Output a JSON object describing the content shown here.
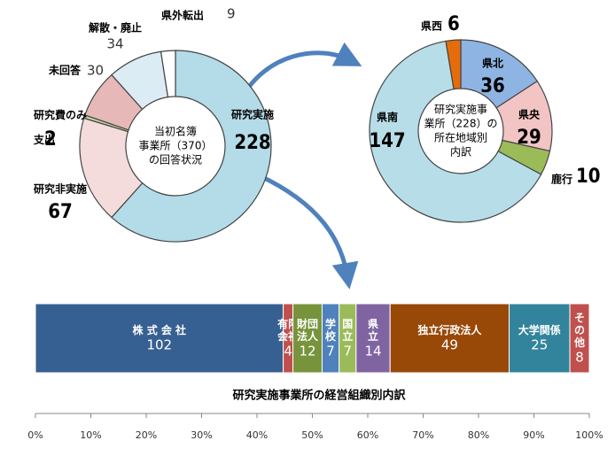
{
  "chart_data": [
    {
      "type": "donut",
      "center_label": [
        "当初名簿",
        "事業所（370）",
        "の回答状況"
      ],
      "categories": [
        "研究実施",
        "研究非実施",
        "研究費のみ支出",
        "未回答",
        "解散・廃止",
        "県外転出"
      ],
      "values": [
        228,
        67,
        2,
        30,
        34,
        9
      ],
      "colors": [
        "#b3dbe8",
        "#f4dcdc",
        "#c6d9a0",
        "#e6b8b7",
        "#dcecf4",
        "#ffffff"
      ]
    },
    {
      "type": "donut",
      "center_label": [
        "研究実施事",
        "業所（228）の",
        "所在地域別",
        "内訳"
      ],
      "categories": [
        "県北",
        "県央",
        "鹿行",
        "県南",
        "県西"
      ],
      "values": [
        36,
        29,
        10,
        147,
        6
      ],
      "colors": [
        "#8eb4e3",
        "#f2c4c4",
        "#9bbb59",
        "#b7dde8",
        "#e46c0a"
      ]
    },
    {
      "type": "stacked_bar",
      "title": "研究実施事業所の経営組織別内訳",
      "categories": [
        "株 式 会 社",
        "有限会社",
        "財団法人",
        "学校",
        "国立",
        "県立",
        "独立行政法人",
        "大学関係",
        "その他"
      ],
      "values": [
        102,
        4,
        12,
        7,
        7,
        14,
        49,
        25,
        8
      ],
      "colors": [
        "#376092",
        "#c0504d",
        "#77933c",
        "#4f81bd",
        "#9bbb59",
        "#8064a2",
        "#984807",
        "#31849b",
        "#c0504d"
      ],
      "xlim": [
        0,
        228
      ],
      "xticks": [
        {
          "value": 0,
          "label": "0%"
        },
        {
          "value": 22.8,
          "label": "10%"
        },
        {
          "value": 45.6,
          "label": "20%"
        },
        {
          "value": 68.4,
          "label": "30%"
        },
        {
          "value": 91.2,
          "label": "40%"
        },
        {
          "value": 114,
          "label": "50%"
        },
        {
          "value": 136.8,
          "label": "60%"
        },
        {
          "value": 159.6,
          "label": "70%"
        },
        {
          "value": 182.4,
          "label": "80%"
        },
        {
          "value": 205.2,
          "label": "90%"
        },
        {
          "value": 228,
          "label": "100%"
        }
      ]
    }
  ]
}
